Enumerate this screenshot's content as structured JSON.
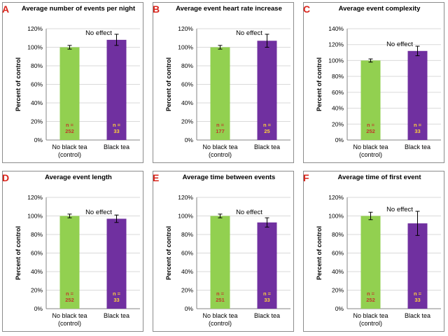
{
  "chart_data": [
    {
      "panel": "A",
      "type": "bar",
      "title": "Average number of events per night",
      "annotation": "No effect",
      "ylabel": "Percent of control",
      "ylim": [
        0,
        120
      ],
      "yticks": [
        "0%",
        "20%",
        "40%",
        "60%",
        "80%",
        "100%",
        "120%"
      ],
      "categories": [
        "No black tea (control)",
        "Black tea"
      ],
      "values": [
        100,
        108
      ],
      "errors": [
        2,
        6
      ],
      "n_labels": [
        "n = 252",
        "n = 33"
      ]
    },
    {
      "panel": "B",
      "type": "bar",
      "title": "Average event heart rate increase",
      "annotation": "No effect",
      "ylabel": "Percent of control",
      "ylim": [
        0,
        120
      ],
      "yticks": [
        "0%",
        "20%",
        "40%",
        "60%",
        "80%",
        "100%",
        "120%"
      ],
      "categories": [
        "No black tea (control)",
        "Black tea"
      ],
      "values": [
        100,
        107
      ],
      "errors": [
        2,
        7
      ],
      "n_labels": [
        "n = 177",
        "n = 25"
      ]
    },
    {
      "panel": "C",
      "type": "bar",
      "title": "Average event complexity",
      "annotation": "No effect",
      "ylabel": "Percent of control",
      "ylim": [
        0,
        140
      ],
      "yticks": [
        "0%",
        "20%",
        "40%",
        "60%",
        "80%",
        "100%",
        "120%",
        "140%"
      ],
      "categories": [
        "No black tea (control)",
        "Black tea"
      ],
      "values": [
        100,
        112
      ],
      "errors": [
        2,
        6
      ],
      "n_labels": [
        "n = 252",
        "n = 33"
      ]
    },
    {
      "panel": "D",
      "type": "bar",
      "title": "Average event length",
      "annotation": "No effect",
      "ylabel": "Percent of control",
      "ylim": [
        0,
        120
      ],
      "yticks": [
        "0%",
        "20%",
        "40%",
        "60%",
        "80%",
        "100%",
        "120%"
      ],
      "categories": [
        "No black tea (control)",
        "Black tea"
      ],
      "values": [
        100,
        97
      ],
      "errors": [
        2,
        4
      ],
      "n_labels": [
        "n = 252",
        "n = 33"
      ]
    },
    {
      "panel": "E",
      "type": "bar",
      "title": "Average time between events",
      "annotation": "No effect",
      "ylabel": "Percent of control",
      "ylim": [
        0,
        120
      ],
      "yticks": [
        "0%",
        "20%",
        "40%",
        "60%",
        "80%",
        "100%",
        "120%"
      ],
      "categories": [
        "No black tea (control)",
        "Black tea"
      ],
      "values": [
        100,
        93
      ],
      "errors": [
        2,
        5
      ],
      "n_labels": [
        "n = 251",
        "n = 33"
      ]
    },
    {
      "panel": "F",
      "type": "bar",
      "title": "Average time of first event",
      "annotation": "No effect",
      "ylabel": "Percent of control",
      "ylim": [
        0,
        120
      ],
      "yticks": [
        "0%",
        "20%",
        "40%",
        "60%",
        "80%",
        "100%",
        "120%"
      ],
      "categories": [
        "No black tea (control)",
        "Black tea"
      ],
      "values": [
        100,
        92
      ],
      "errors": [
        4,
        13
      ],
      "n_labels": [
        "n = 252",
        "n = 33"
      ]
    }
  ],
  "colors": {
    "control_bar": "#92d050",
    "tea_bar": "#7030a0",
    "n_label_on_green": "#c0392b",
    "n_label_on_purple": "#ffd23a",
    "panel_letter": "#d9241b",
    "gridline": "#d9d9d9"
  }
}
